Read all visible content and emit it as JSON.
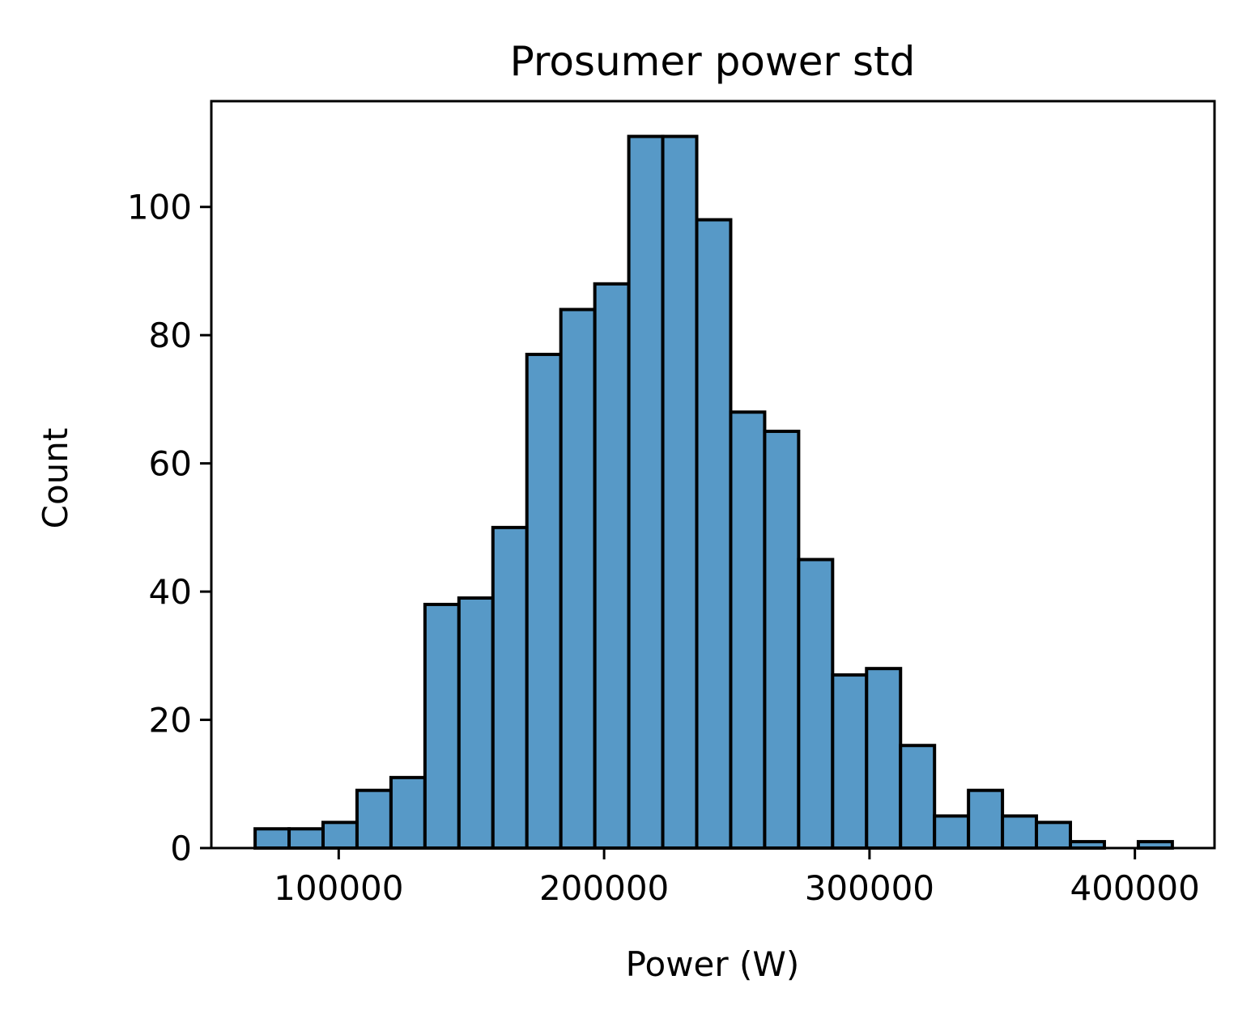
{
  "chart_data": {
    "type": "bar",
    "title": "Prosumer power std",
    "xlabel": "Power (W)",
    "ylabel": "Count",
    "bin_start": 68500,
    "bin_width": 12800,
    "values": [
      3,
      3,
      4,
      9,
      11,
      38,
      39,
      50,
      77,
      84,
      88,
      111,
      111,
      98,
      68,
      65,
      45,
      27,
      28,
      16,
      5,
      9,
      5,
      4,
      1,
      0,
      1
    ],
    "xlim": [
      52000,
      430000
    ],
    "ylim": [
      0,
      116.5
    ],
    "xticks": [
      100000,
      200000,
      300000,
      400000
    ],
    "xtick_labels": [
      "100000",
      "200000",
      "300000",
      "400000"
    ],
    "yticks": [
      0,
      20,
      40,
      60,
      80,
      100
    ],
    "ytick_labels": [
      "0",
      "20",
      "40",
      "60",
      "80",
      "100"
    ],
    "grid": false,
    "bar_color": "#5799c7",
    "edge_color": "#000000"
  }
}
